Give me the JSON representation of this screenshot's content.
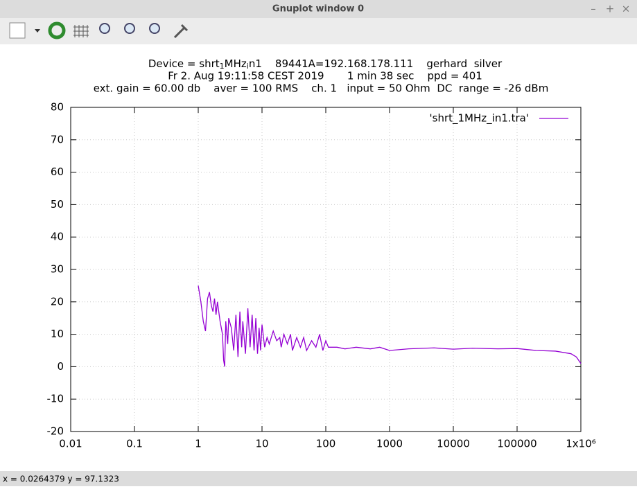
{
  "window": {
    "title": "Gnuplot window 0",
    "status": "x = 0.0264379 y = 97.1323"
  },
  "chart_data": {
    "type": "line",
    "title_line_1": [
      "Device = shrt",
      "1",
      "MHz",
      "i",
      "n1    89441A=192.168.178.111    gerhard  silver"
    ],
    "title_line_2": "Fr 2. Aug 19:11:58 CEST 2019       1 min 38 sec    ppd = 401",
    "title_line_3": "ext. gain = 60.00 db    aver = 100 RMS    ch. 1   input = 50 Ohm  DC  range = -26 dBm",
    "x_scale": "log",
    "grid": true,
    "legend": "top-right",
    "xlim": [
      0.01,
      1000000
    ],
    "ylim": [
      -20,
      80
    ],
    "xticks": [
      0.01,
      0.1,
      1,
      10,
      100,
      1000,
      10000,
      100000,
      {
        "value": 1000000,
        "label": "1x10⁶"
      }
    ],
    "yticks": [
      -20,
      -10,
      0,
      10,
      20,
      30,
      40,
      50,
      60,
      70,
      80
    ],
    "series": [
      {
        "name": "'shrt_1MHz_in1.tra'",
        "color": "#9400d3",
        "x": [
          1,
          1.1,
          1.2,
          1.3,
          1.4,
          1.5,
          1.6,
          1.7,
          1.8,
          1.9,
          2,
          2.2,
          2.4,
          2.5,
          2.6,
          2.7,
          2.9,
          3,
          3.3,
          3.6,
          3.9,
          4.2,
          4.5,
          4.8,
          5,
          5.5,
          6,
          6.5,
          7,
          7.5,
          8,
          8.5,
          9,
          9.5,
          10,
          11,
          12,
          13,
          15,
          17,
          19,
          20,
          22,
          25,
          28,
          30,
          35,
          40,
          45,
          50,
          60,
          70,
          80,
          90,
          100,
          110,
          150,
          200,
          300,
          500,
          700,
          1000,
          2000,
          5000,
          10000,
          20000,
          50000,
          100000,
          200000,
          400000,
          700000,
          850000,
          1000000
        ],
        "values": [
          25,
          20,
          14,
          11,
          21,
          23,
          19,
          17,
          21,
          16,
          20,
          14,
          10,
          2,
          0,
          14,
          7,
          15,
          12,
          5,
          16,
          3,
          17,
          6,
          14,
          4,
          18,
          6,
          16,
          5,
          15,
          4,
          12,
          5,
          13,
          6,
          9,
          7,
          11,
          8,
          9,
          6,
          10,
          7,
          10,
          5,
          9,
          6,
          9,
          5,
          8,
          6,
          10,
          5,
          8,
          6,
          6,
          5.5,
          6,
          5.5,
          6,
          5,
          5.5,
          5.8,
          5.4,
          5.7,
          5.5,
          5.6,
          5,
          4.8,
          4,
          3,
          1
        ]
      }
    ]
  }
}
